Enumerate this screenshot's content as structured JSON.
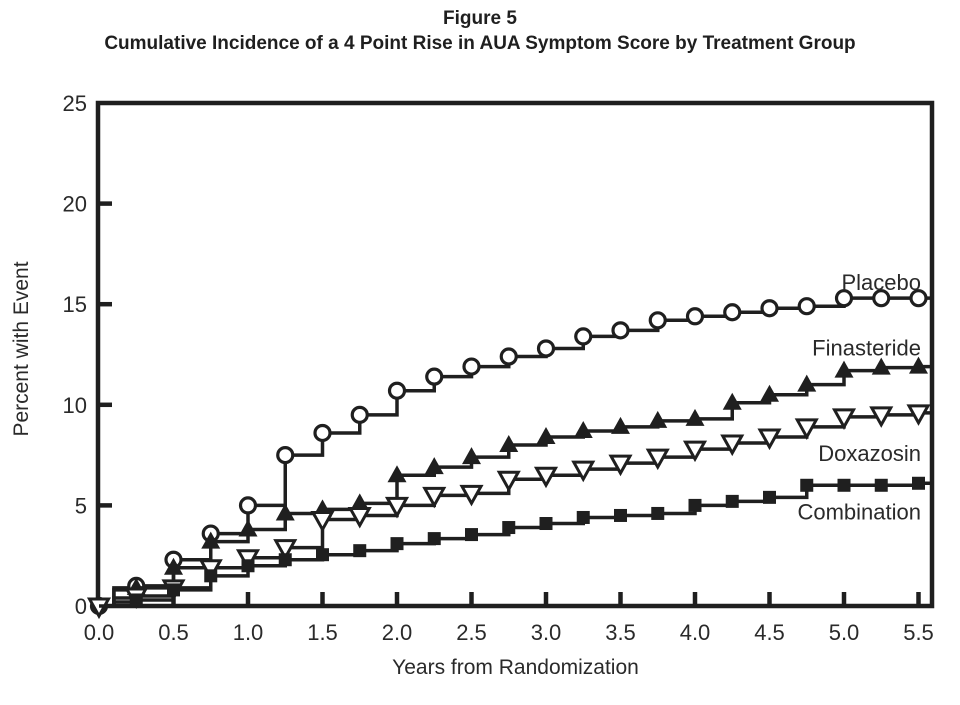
{
  "figure": {
    "number": "Figure 5",
    "title": "Cumulative Incidence of a 4 Point Rise in AUA Symptom Score by Treatment Group"
  },
  "axes": {
    "x_label": "Years from Randomization",
    "y_label": "Percent with Event"
  },
  "colors": {
    "line": "#1f1f1f",
    "background": "#ffffff"
  },
  "chart_data": {
    "type": "line",
    "step": true,
    "title": "Figure 5",
    "subtitle": "Cumulative Incidence of a 4 Point Rise in AUA Symptom Score by Treatment Group",
    "xlabel": "Years from Randomization",
    "ylabel": "Percent with Event",
    "xlim": [
      0,
      5.6
    ],
    "ylim": [
      0,
      25
    ],
    "x_ticks": [
      "0.0",
      "0.5",
      "1.0",
      "1.5",
      "2.0",
      "2.5",
      "3.0",
      "3.5",
      "4.0",
      "4.5",
      "5.0",
      "5.5"
    ],
    "y_ticks": [
      0,
      5,
      10,
      15,
      20,
      25
    ],
    "grid": false,
    "legend_position": "inline-right",
    "series": [
      {
        "name": "Placebo",
        "marker": "circle-open",
        "marker_at_origin": true,
        "points": [
          [
            0,
            0
          ],
          [
            0.1,
            0.9
          ],
          [
            0.25,
            1.0
          ],
          [
            0.5,
            2.3
          ],
          [
            0.75,
            3.6
          ],
          [
            1.0,
            5.0
          ],
          [
            1.25,
            7.5
          ],
          [
            1.5,
            8.6
          ],
          [
            1.75,
            9.5
          ],
          [
            2.0,
            10.7
          ],
          [
            2.25,
            11.4
          ],
          [
            2.5,
            11.9
          ],
          [
            2.75,
            12.4
          ],
          [
            3.0,
            12.8
          ],
          [
            3.25,
            13.4
          ],
          [
            3.5,
            13.7
          ],
          [
            3.75,
            14.2
          ],
          [
            4.0,
            14.4
          ],
          [
            4.25,
            14.6
          ],
          [
            4.5,
            14.8
          ],
          [
            4.75,
            14.9
          ],
          [
            5.0,
            15.3
          ],
          [
            5.25,
            15.3
          ],
          [
            5.5,
            15.3
          ]
        ]
      },
      {
        "name": "Finasteride",
        "marker": "triangle-up-filled",
        "marker_at_origin": false,
        "points": [
          [
            0,
            0
          ],
          [
            0.1,
            0.8
          ],
          [
            0.25,
            0.9
          ],
          [
            0.5,
            1.9
          ],
          [
            0.75,
            3.2
          ],
          [
            1.0,
            3.8
          ],
          [
            1.25,
            4.6
          ],
          [
            1.5,
            4.8
          ],
          [
            1.75,
            5.1
          ],
          [
            2.0,
            6.5
          ],
          [
            2.25,
            6.9
          ],
          [
            2.5,
            7.4
          ],
          [
            2.75,
            8.0
          ],
          [
            3.0,
            8.4
          ],
          [
            3.25,
            8.7
          ],
          [
            3.5,
            8.9
          ],
          [
            3.75,
            9.2
          ],
          [
            4.0,
            9.3
          ],
          [
            4.25,
            10.1
          ],
          [
            4.5,
            10.5
          ],
          [
            4.75,
            11.0
          ],
          [
            5.0,
            11.7
          ],
          [
            5.25,
            11.85
          ],
          [
            5.5,
            11.9
          ]
        ]
      },
      {
        "name": "Doxazosin",
        "marker": "triangle-down-open",
        "marker_at_origin": true,
        "points": [
          [
            0,
            0
          ],
          [
            0.1,
            0.4
          ],
          [
            0.25,
            0.5
          ],
          [
            0.5,
            0.9
          ],
          [
            0.75,
            1.9
          ],
          [
            1.0,
            2.4
          ],
          [
            1.25,
            2.9
          ],
          [
            1.5,
            4.3
          ],
          [
            1.75,
            4.5
          ],
          [
            2.0,
            5.0
          ],
          [
            2.25,
            5.5
          ],
          [
            2.5,
            5.6
          ],
          [
            2.75,
            6.3
          ],
          [
            3.0,
            6.5
          ],
          [
            3.25,
            6.8
          ],
          [
            3.5,
            7.1
          ],
          [
            3.75,
            7.4
          ],
          [
            4.0,
            7.8
          ],
          [
            4.25,
            8.1
          ],
          [
            4.5,
            8.4
          ],
          [
            4.75,
            8.9
          ],
          [
            5.0,
            9.4
          ],
          [
            5.25,
            9.5
          ],
          [
            5.5,
            9.6
          ]
        ]
      },
      {
        "name": "Combination",
        "marker": "square-filled",
        "marker_at_origin": false,
        "points": [
          [
            0,
            0
          ],
          [
            0.1,
            0.2
          ],
          [
            0.25,
            0.3
          ],
          [
            0.5,
            0.8
          ],
          [
            0.75,
            1.5
          ],
          [
            1.0,
            2.0
          ],
          [
            1.25,
            2.3
          ],
          [
            1.5,
            2.55
          ],
          [
            1.75,
            2.75
          ],
          [
            2.0,
            3.1
          ],
          [
            2.25,
            3.35
          ],
          [
            2.5,
            3.55
          ],
          [
            2.75,
            3.9
          ],
          [
            3.0,
            4.1
          ],
          [
            3.25,
            4.4
          ],
          [
            3.5,
            4.5
          ],
          [
            3.75,
            4.6
          ],
          [
            4.0,
            5.0
          ],
          [
            4.25,
            5.2
          ],
          [
            4.5,
            5.4
          ],
          [
            4.75,
            6.0
          ],
          [
            5.0,
            6.0
          ],
          [
            5.25,
            6.0
          ],
          [
            5.5,
            6.1
          ]
        ]
      }
    ]
  }
}
